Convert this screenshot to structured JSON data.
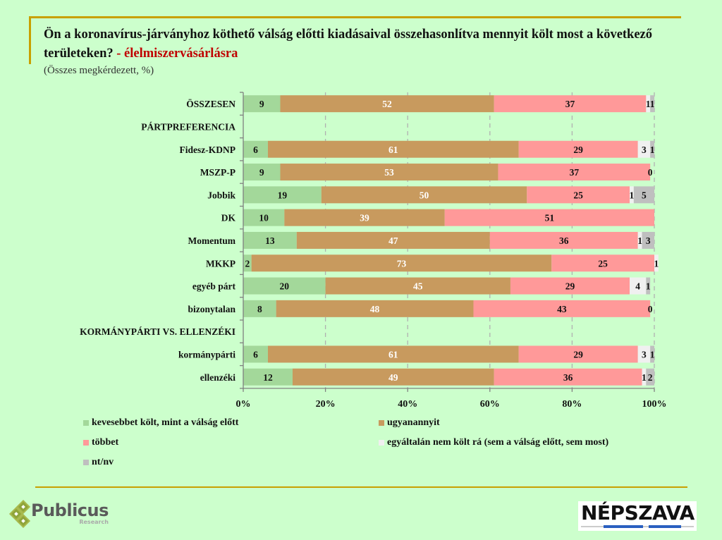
{
  "header": {
    "title_main": "Ön a koronavírus-járványhoz köthető válság előtti kiadásaival összehasonlítva mennyit költ most a következő területeken?",
    "title_accent": " - élelmiszervásárlásra",
    "subtitle": "(Összes megkérdezett, %)"
  },
  "colors": {
    "kevesebbet": "#a3d89a",
    "ugyanannyit": "#c89a5e",
    "tobbet": "#ff9999",
    "nem_kolt": "#f0f0f0",
    "ntnv": "#bfbfbf",
    "accent_line": "#c8a000",
    "title_accent": "#c00000"
  },
  "chart_data": {
    "type": "bar",
    "orientation": "horizontal",
    "stacked": true,
    "title": "Ön a koronavírus-járványhoz köthető válság előtti kiadásaival összehasonlítva mennyit költ most a következő területeken? - élelmiszervásárlásra",
    "subtitle": "(Összes megkérdezett, %)",
    "xlabel": "",
    "ylabel": "",
    "xlim": [
      0,
      100
    ],
    "x_ticks": [
      "0%",
      "20%",
      "40%",
      "60%",
      "80%",
      "100%"
    ],
    "grid": "vertical dashed",
    "legend_position": "bottom",
    "categories": [
      "ÖSSZESEN",
      "PÁRTPREFERENCIA",
      "Fidesz-KDNP",
      "MSZP-P",
      "Jobbik",
      "DK",
      "Momentum",
      "MKKP",
      "egyéb párt",
      "bizonytalan",
      "KORMÁNYPÁRTI VS. ELLENZÉKI",
      "kormánypárti",
      "ellenzéki"
    ],
    "category_is_header": [
      false,
      true,
      false,
      false,
      false,
      false,
      false,
      false,
      false,
      false,
      true,
      false,
      false
    ],
    "series": [
      {
        "name": "kevesebbet költ, mint a válság előtt",
        "color_key": "kevesebbet",
        "values": [
          9,
          null,
          6,
          9,
          19,
          10,
          13,
          2,
          20,
          8,
          null,
          6,
          12
        ]
      },
      {
        "name": "ugyanannyit",
        "color_key": "ugyanannyit",
        "values": [
          52,
          null,
          61,
          53,
          50,
          39,
          47,
          73,
          45,
          48,
          null,
          61,
          49
        ]
      },
      {
        "name": "többet",
        "color_key": "tobbet",
        "values": [
          37,
          null,
          29,
          37,
          25,
          51,
          36,
          25,
          29,
          43,
          null,
          29,
          36
        ]
      },
      {
        "name": "egyáltalán nem költ rá (sem a válság előtt, sem most)",
        "color_key": "nem_kolt",
        "values": [
          1,
          null,
          3,
          0,
          1,
          null,
          1,
          1,
          4,
          0,
          null,
          3,
          1
        ]
      },
      {
        "name": "nt/nv",
        "color_key": "ntnv",
        "values": [
          1,
          null,
          1,
          null,
          5,
          null,
          3,
          null,
          1,
          null,
          null,
          1,
          2
        ]
      }
    ]
  },
  "legend": [
    {
      "label": "kevesebbet költ, mint a válság előtt",
      "color_key": "kevesebbet"
    },
    {
      "label": "ugyanannyit",
      "color_key": "ugyanannyit"
    },
    {
      "label": "többet",
      "color_key": "tobbet"
    },
    {
      "label": "egyáltalán nem költ rá (sem a válság előtt, sem most)",
      "color_key": "nem_kolt"
    },
    {
      "label": "nt/nv",
      "color_key": "ntnv"
    }
  ],
  "logos": {
    "publicus_name": "Publicus",
    "publicus_sub": "Research",
    "nepszava": "NÉPSZAVA"
  }
}
